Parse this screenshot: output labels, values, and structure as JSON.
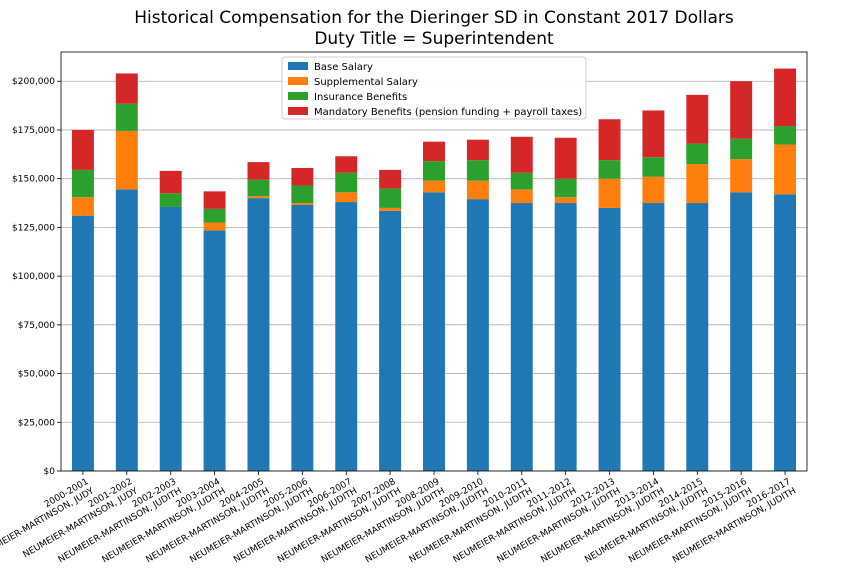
{
  "chart_data": {
    "type": "bar",
    "stacked": true,
    "title": "Historical Compensation for the Dieringer SD in Constant 2017 Dollars",
    "subtitle": "Duty Title = Superintendent",
    "xlabel": "",
    "ylabel": "",
    "ylim": [
      0,
      215000
    ],
    "y_ticks": [
      "$0",
      "$25,000",
      "$50,000",
      "$75,000",
      "$100,000",
      "$125,000",
      "$150,000",
      "$175,000",
      "$200,000"
    ],
    "y_tick_values": [
      0,
      25000,
      50000,
      75000,
      100000,
      125000,
      150000,
      175000,
      200000
    ],
    "grid": true,
    "legend_position": "top-center",
    "categories": [
      [
        "2000-2001",
        "NEUMEIER-MARTINSON, JUDY"
      ],
      [
        "2001-2002",
        "NEUMEIER-MARTINSON, JUDY"
      ],
      [
        "2002-2003",
        "NEUMEIER-MARTINSON, JUDITH"
      ],
      [
        "2003-2004",
        "NEUMEIER-MARTINSON, JUDITH"
      ],
      [
        "2004-2005",
        "NEUMEIER-MARTINSON, JUDITH"
      ],
      [
        "2005-2006",
        "NEUMEIER-MARTINSON, JUDITH"
      ],
      [
        "2006-2007",
        "NEUMEIER-MARTINSON, JUDITH"
      ],
      [
        "2007-2008",
        "NEUMEIER-MARTINSON, JUDITH"
      ],
      [
        "2008-2009",
        "NEUMEIER-MARTINSON, JUDITH"
      ],
      [
        "2009-2010",
        "NEUMEIER-MARTINSON, JUDITH"
      ],
      [
        "2010-2011",
        "NEUMEIER-MARTINSON, JUDITH"
      ],
      [
        "2011-2012",
        "NEUMEIER-MARTINSON, JUDITH"
      ],
      [
        "2012-2013",
        "NEUMEIER-MARTINSON, JUDITH"
      ],
      [
        "2013-2014",
        "NEUMEIER-MARTINSON, JUDITH"
      ],
      [
        "2014-2015",
        "NEUMEIER-MARTINSON, JUDITH"
      ],
      [
        "2015-2016",
        "NEUMEIER-MARTINSON, JUDITH"
      ],
      [
        "2016-2017",
        "NEUMEIER-MARTINSON, JUDITH"
      ]
    ],
    "series": [
      {
        "name": "Base Salary",
        "color": "#1f77b4",
        "values": [
          131000,
          144500,
          135500,
          123500,
          140000,
          136500,
          138000,
          133500,
          143000,
          139500,
          137500,
          137500,
          135000,
          137500,
          137500,
          143000,
          142000
        ]
      },
      {
        "name": "Supplemental Salary",
        "color": "#ff7f0e",
        "values": [
          9500,
          30000,
          0,
          4000,
          1000,
          1000,
          5000,
          1500,
          6000,
          9500,
          7000,
          3000,
          15000,
          13500,
          20000,
          17000,
          25500
        ]
      },
      {
        "name": "Insurance Benefits",
        "color": "#2ca02c",
        "values": [
          14000,
          14000,
          7000,
          7000,
          8500,
          9000,
          10000,
          10000,
          10000,
          10500,
          8500,
          9500,
          9500,
          10000,
          10500,
          10500,
          9500
        ]
      },
      {
        "name": "Mandatory Benefits (pension funding + payroll taxes)",
        "color": "#d62728",
        "values": [
          20500,
          15500,
          11500,
          9000,
          9000,
          9000,
          8500,
          9500,
          10000,
          10500,
          18500,
          21000,
          21000,
          24000,
          25000,
          29500,
          29500
        ]
      }
    ]
  }
}
